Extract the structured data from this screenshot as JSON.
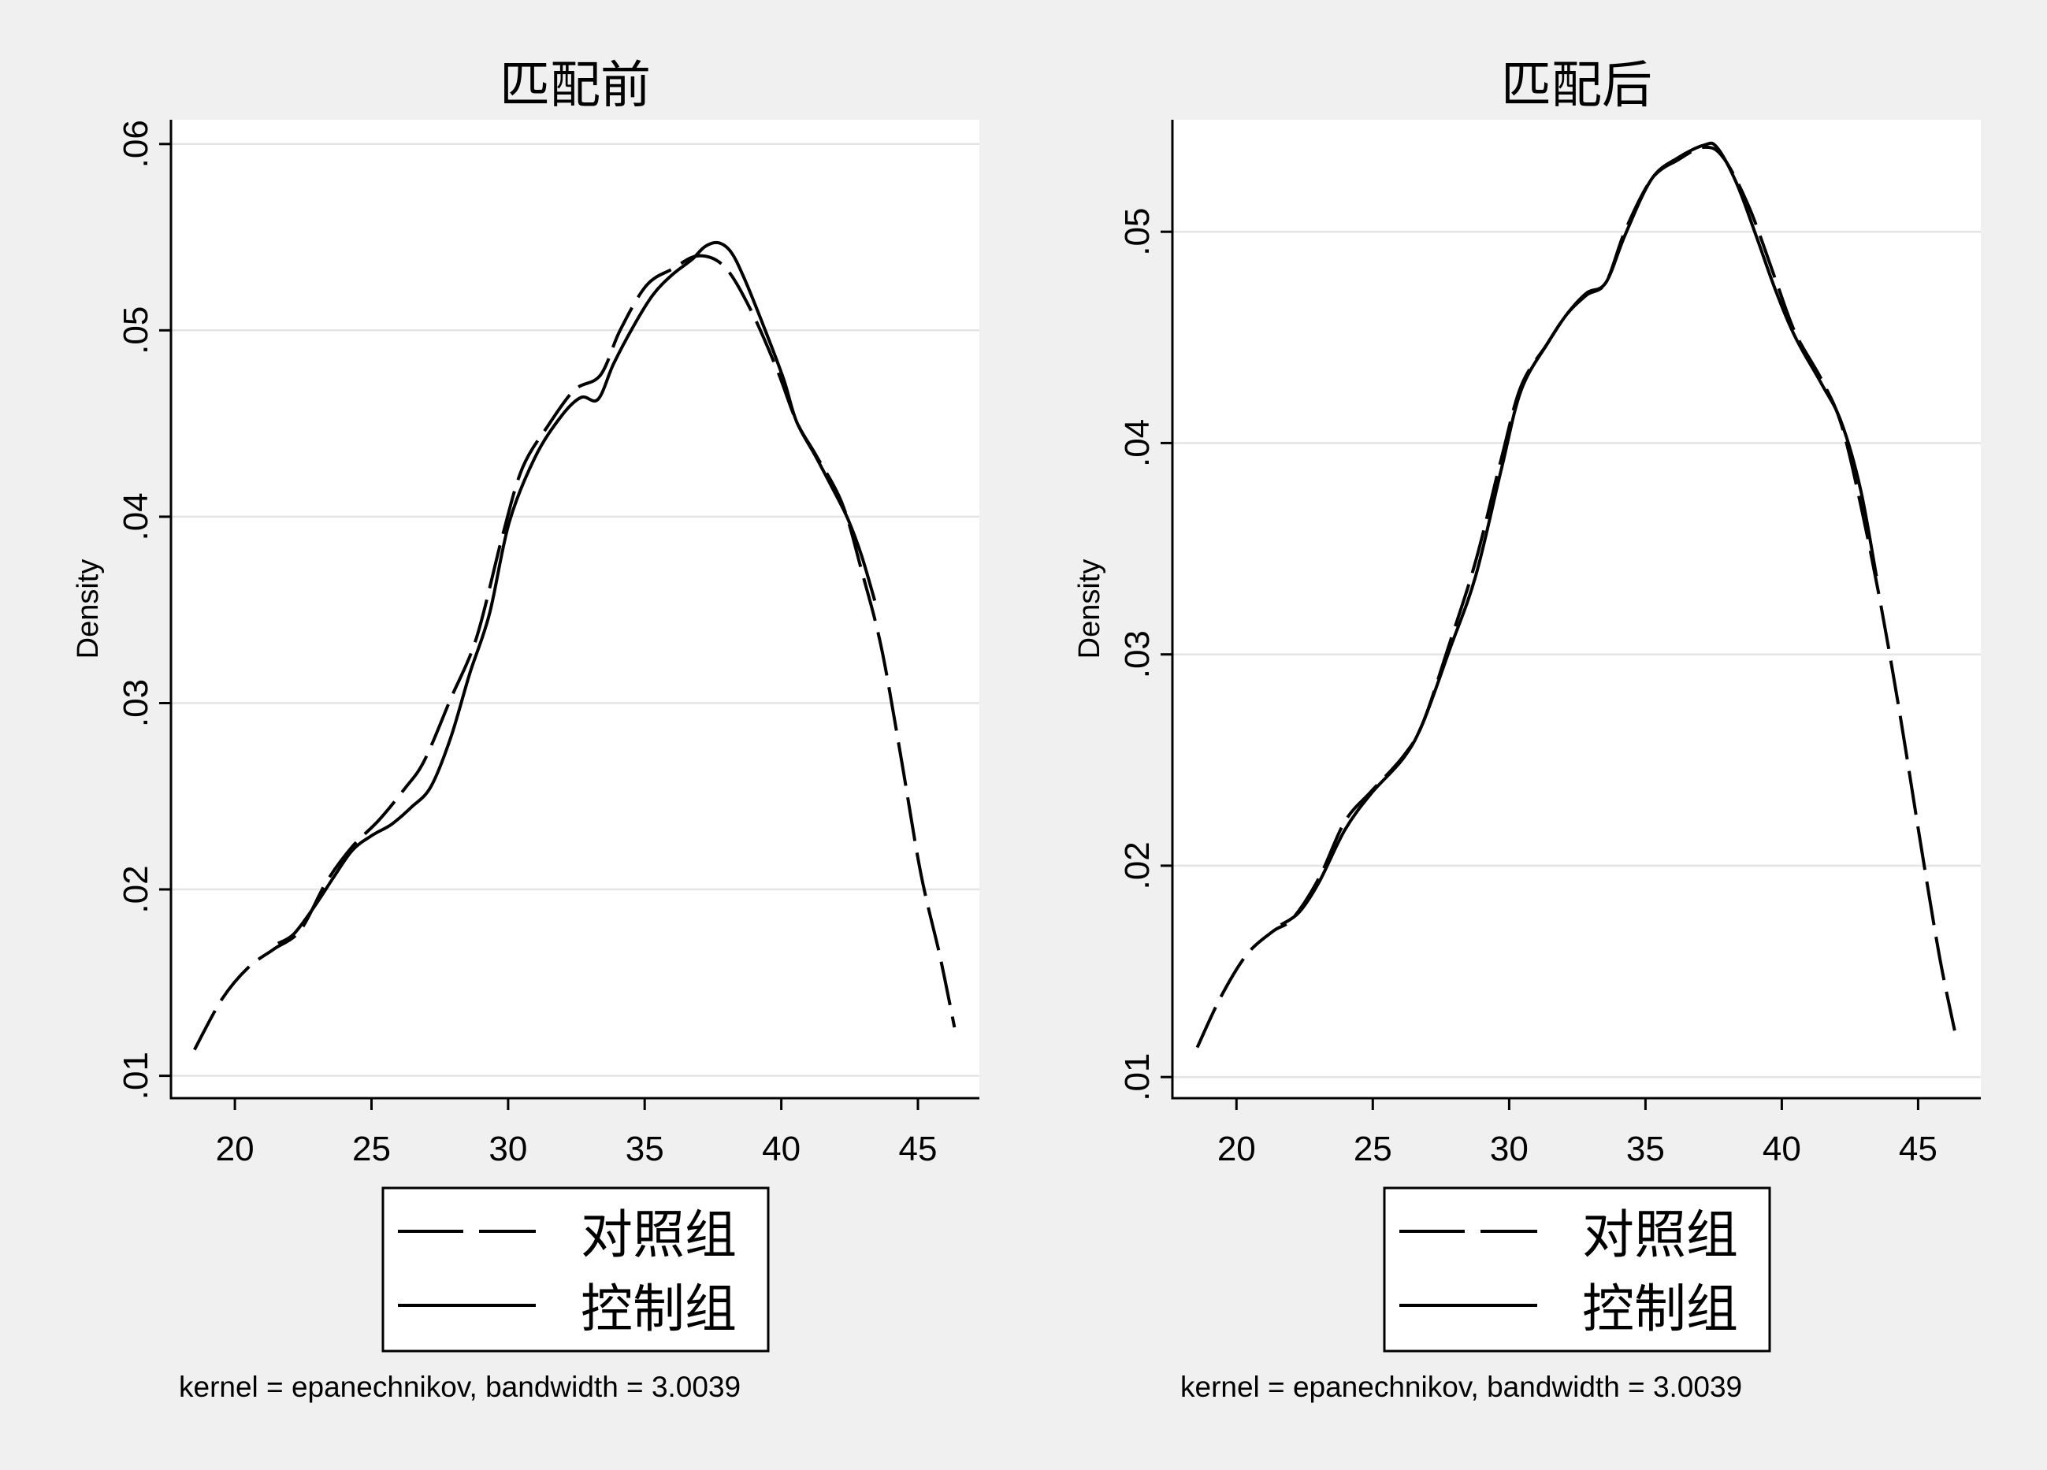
{
  "colors": {
    "background": "#f0f0f0",
    "plot_background": "#ffffff",
    "grid": "#e4e4e4",
    "axis": "#000000"
  },
  "chart_data": [
    {
      "type": "line",
      "title": "匹配前",
      "ylabel": "Density",
      "xlim": [
        17.66,
        47.25
      ],
      "ylim": [
        0.0088,
        0.0613
      ],
      "xticks": {
        "values": [
          20,
          25,
          30,
          35,
          40,
          45
        ],
        "labels": [
          "20",
          "25",
          "30",
          "35",
          "40",
          "45"
        ]
      },
      "yticks": {
        "values": [
          0.01,
          0.02,
          0.03,
          0.04,
          0.05,
          0.06
        ],
        "labels": [
          ".01",
          ".02",
          ".03",
          ".04",
          ".05",
          ".06"
        ]
      },
      "grid": true,
      "legend_position": "bottom",
      "note": "kernel = epanechnikov, bandwidth = 3.0039",
      "series": [
        {
          "name": "对照组",
          "line_style": "dashed",
          "color": "#000000",
          "points": [
            [
              18.52,
              0.0114
            ],
            [
              19.52,
              0.0141
            ],
            [
              20.48,
              0.0158
            ],
            [
              21.43,
              0.0168
            ],
            [
              22.39,
              0.0178
            ],
            [
              23.35,
              0.0204
            ],
            [
              24.3,
              0.0223
            ],
            [
              25.26,
              0.0237
            ],
            [
              26.21,
              0.0254
            ],
            [
              26.93,
              0.0269
            ],
            [
              27.89,
              0.0302
            ],
            [
              28.84,
              0.0335
            ],
            [
              29.8,
              0.039
            ],
            [
              30.52,
              0.0426
            ],
            [
              31.47,
              0.0449
            ],
            [
              32.43,
              0.0468
            ],
            [
              33.38,
              0.0476
            ],
            [
              34.1,
              0.05
            ],
            [
              35.06,
              0.0524
            ],
            [
              36.02,
              0.0533
            ],
            [
              36.97,
              0.054
            ],
            [
              37.93,
              0.0534
            ],
            [
              38.88,
              0.0511
            ],
            [
              39.84,
              0.0479
            ],
            [
              40.56,
              0.0451
            ],
            [
              41.27,
              0.0433
            ],
            [
              42.23,
              0.0407
            ],
            [
              42.94,
              0.0371
            ],
            [
              43.66,
              0.033
            ],
            [
              44.38,
              0.0271
            ],
            [
              45.1,
              0.0209
            ],
            [
              45.81,
              0.0164
            ],
            [
              46.34,
              0.0126
            ]
          ]
        },
        {
          "name": "控制组",
          "line_style": "solid",
          "color": "#000000",
          "points": [
            [
              21.58,
              0.0171
            ],
            [
              22.15,
              0.0176
            ],
            [
              22.87,
              0.019
            ],
            [
              23.59,
              0.0206
            ],
            [
              24.3,
              0.0221
            ],
            [
              25.02,
              0.0229
            ],
            [
              25.74,
              0.0235
            ],
            [
              26.45,
              0.0244
            ],
            [
              27.17,
              0.0255
            ],
            [
              27.89,
              0.0281
            ],
            [
              28.6,
              0.0316
            ],
            [
              29.32,
              0.0348
            ],
            [
              30.04,
              0.0397
            ],
            [
              30.99,
              0.0432
            ],
            [
              31.95,
              0.0454
            ],
            [
              32.67,
              0.0464
            ],
            [
              33.29,
              0.0463
            ],
            [
              33.86,
              0.0482
            ],
            [
              34.58,
              0.0502
            ],
            [
              35.3,
              0.0519
            ],
            [
              36.02,
              0.053
            ],
            [
              36.73,
              0.0538
            ],
            [
              37.21,
              0.0545
            ],
            [
              37.69,
              0.0547
            ],
            [
              38.16,
              0.0542
            ],
            [
              38.64,
              0.0528
            ],
            [
              39.36,
              0.0502
            ],
            [
              40.08,
              0.0474
            ],
            [
              40.56,
              0.0451
            ],
            [
              41.27,
              0.0432
            ],
            [
              41.99,
              0.0412
            ],
            [
              42.46,
              0.0398
            ],
            [
              42.94,
              0.0379
            ],
            [
              43.42,
              0.0355
            ]
          ]
        }
      ]
    },
    {
      "type": "line",
      "title": "匹配后",
      "ylabel": "Density",
      "xlim": [
        17.65,
        47.3
      ],
      "ylim": [
        0.009,
        0.0553
      ],
      "xticks": {
        "values": [
          20,
          25,
          30,
          35,
          40,
          45
        ],
        "labels": [
          "20",
          "25",
          "30",
          "35",
          "40",
          "45"
        ]
      },
      "yticks": {
        "values": [
          0.01,
          0.02,
          0.03,
          0.04,
          0.05
        ],
        "labels": [
          ".01",
          ".02",
          ".03",
          ".04",
          ".05"
        ]
      },
      "grid": true,
      "legend_position": "bottom",
      "note": "kernel = epanechnikov, bandwidth = 3.0039",
      "series": [
        {
          "name": "对照组",
          "line_style": "dashed",
          "color": "#000000",
          "points": [
            [
              18.56,
              0.0114
            ],
            [
              19.43,
              0.0138
            ],
            [
              20.38,
              0.0158
            ],
            [
              21.34,
              0.0169
            ],
            [
              22.06,
              0.0175
            ],
            [
              23.02,
              0.0194
            ],
            [
              23.98,
              0.0221
            ],
            [
              24.93,
              0.0235
            ],
            [
              26.13,
              0.0252
            ],
            [
              26.85,
              0.0268
            ],
            [
              27.81,
              0.0305
            ],
            [
              28.77,
              0.0344
            ],
            [
              29.72,
              0.0393
            ],
            [
              30.44,
              0.0427
            ],
            [
              31.4,
              0.0447
            ],
            [
              32.12,
              0.0461
            ],
            [
              32.84,
              0.047
            ],
            [
              33.55,
              0.0476
            ],
            [
              34.27,
              0.0501
            ],
            [
              35.23,
              0.0525
            ],
            [
              36.19,
              0.0534
            ],
            [
              37.15,
              0.054
            ],
            [
              37.86,
              0.0535
            ],
            [
              38.82,
              0.0511
            ],
            [
              39.78,
              0.0477
            ],
            [
              40.5,
              0.0452
            ],
            [
              41.46,
              0.043
            ],
            [
              42.18,
              0.0409
            ],
            [
              42.89,
              0.0371
            ],
            [
              43.61,
              0.0325
            ],
            [
              44.33,
              0.0272
            ],
            [
              45.05,
              0.0214
            ],
            [
              45.77,
              0.0158
            ],
            [
              46.34,
              0.0122
            ]
          ]
        },
        {
          "name": "控制组",
          "line_style": "solid",
          "color": "#000000",
          "points": [
            [
              21.63,
              0.0172
            ],
            [
              22.3,
              0.0178
            ],
            [
              23.02,
              0.0192
            ],
            [
              23.98,
              0.0217
            ],
            [
              24.93,
              0.0234
            ],
            [
              26.13,
              0.0251
            ],
            [
              26.85,
              0.0268
            ],
            [
              27.81,
              0.0302
            ],
            [
              28.77,
              0.0337
            ],
            [
              29.72,
              0.0388
            ],
            [
              30.44,
              0.0425
            ],
            [
              31.4,
              0.0447
            ],
            [
              32.12,
              0.0461
            ],
            [
              32.84,
              0.0471
            ],
            [
              33.55,
              0.0476
            ],
            [
              34.27,
              0.0499
            ],
            [
              35.23,
              0.0525
            ],
            [
              36.19,
              0.0535
            ],
            [
              37.15,
              0.0541
            ],
            [
              37.62,
              0.054
            ],
            [
              38.34,
              0.0523
            ],
            [
              39.06,
              0.0498
            ],
            [
              39.78,
              0.0472
            ],
            [
              40.5,
              0.045
            ],
            [
              41.46,
              0.0428
            ],
            [
              42.18,
              0.041
            ],
            [
              42.89,
              0.0378
            ],
            [
              43.47,
              0.0337
            ]
          ]
        }
      ]
    }
  ]
}
